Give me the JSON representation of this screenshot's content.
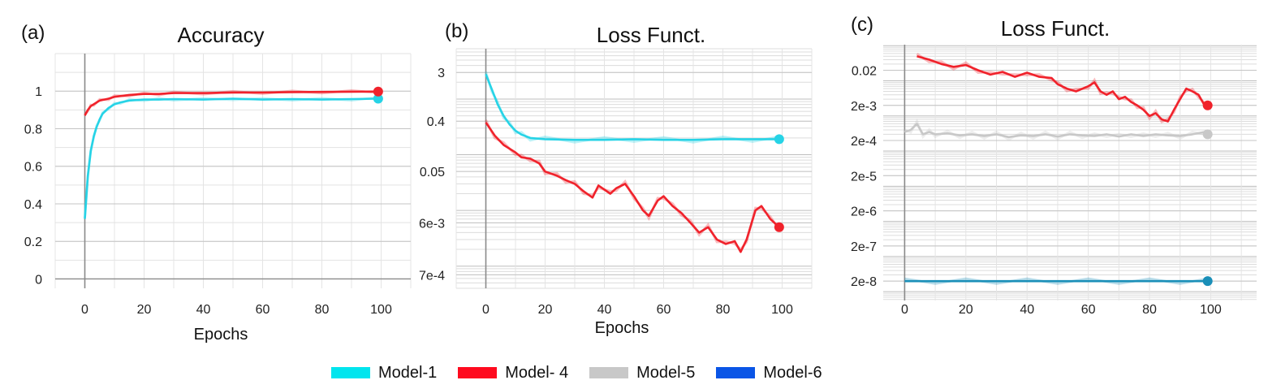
{
  "colors": {
    "Model-1": "#26d3e6",
    "Model- 4": "#f0222b",
    "Model-5": "#c8c8c8",
    "Model-6": "#1565c0",
    "Model-6-line": "#1a8fb8"
  },
  "legend": [
    {
      "label": "Model-1",
      "color": "#00e5ee"
    },
    {
      "label": "Model- 4",
      "color": "#ff0a1e"
    },
    {
      "label": "Model-5",
      "color": "#c8c8c8"
    },
    {
      "label": "Model-6",
      "color": "#0a55e6"
    }
  ],
  "chart_data": [
    {
      "panel": "(a)",
      "type": "line",
      "title": "Accuracy",
      "xlabel": "Epochs",
      "ylabel": "",
      "xlim": [
        -10,
        110
      ],
      "ylim": [
        -0.05,
        1.2
      ],
      "xticks": [
        "0",
        "20",
        "40",
        "60",
        "80",
        "100"
      ],
      "yticks": [
        "0",
        "0.2",
        "0.4",
        "0.6",
        "0.8",
        "1"
      ],
      "grid": true,
      "series": [
        {
          "name": "Model-1",
          "x": [
            0,
            1,
            2,
            3,
            4,
            5,
            6,
            8,
            10,
            12,
            15,
            20,
            25,
            30,
            40,
            50,
            60,
            70,
            80,
            90,
            99
          ],
          "y": [
            0.32,
            0.55,
            0.68,
            0.76,
            0.81,
            0.85,
            0.88,
            0.91,
            0.93,
            0.94,
            0.95,
            0.955,
            0.955,
            0.958,
            0.955,
            0.96,
            0.955,
            0.958,
            0.955,
            0.958,
            0.96
          ]
        },
        {
          "name": "Model- 4",
          "x": [
            0,
            1,
            2,
            3,
            5,
            8,
            10,
            15,
            20,
            25,
            30,
            40,
            50,
            60,
            70,
            80,
            90,
            99
          ],
          "y": [
            0.87,
            0.9,
            0.92,
            0.93,
            0.95,
            0.96,
            0.97,
            0.98,
            0.985,
            0.985,
            0.99,
            0.99,
            0.993,
            0.993,
            0.995,
            0.996,
            0.997,
            0.998
          ]
        }
      ]
    },
    {
      "panel": "(b)",
      "type": "line",
      "title": "Loss Funct.",
      "xlabel": "Epochs",
      "ylabel": "",
      "yscale": "log",
      "xlim": [
        -10,
        110
      ],
      "ylim": [
        0.0004,
        8
      ],
      "xticks": [
        "0",
        "20",
        "40",
        "60",
        "80",
        "100"
      ],
      "yticks": [
        "3",
        "0.4",
        "0.05",
        "6e-3",
        "7e-4"
      ],
      "grid": true,
      "series": [
        {
          "name": "Model-1",
          "x": [
            0,
            2,
            4,
            6,
            8,
            10,
            12,
            15,
            20,
            30,
            40,
            50,
            60,
            70,
            80,
            90,
            99
          ],
          "y": [
            2.8,
            1.5,
            0.8,
            0.5,
            0.35,
            0.27,
            0.23,
            0.2,
            0.19,
            0.185,
            0.185,
            0.19,
            0.185,
            0.185,
            0.19,
            0.19,
            0.19
          ]
        },
        {
          "name": "Model- 4",
          "x": [
            0,
            3,
            6,
            10,
            12,
            15,
            18,
            20,
            24,
            27,
            30,
            33,
            36,
            38,
            42,
            44,
            47,
            50,
            53,
            55,
            58,
            60,
            63,
            66,
            69,
            72,
            75,
            78,
            81,
            84,
            86,
            88,
            91,
            93,
            96,
            99
          ],
          "y": [
            0.38,
            0.22,
            0.15,
            0.11,
            0.09,
            0.085,
            0.07,
            0.05,
            0.042,
            0.035,
            0.03,
            0.022,
            0.017,
            0.028,
            0.02,
            0.025,
            0.03,
            0.018,
            0.01,
            0.008,
            0.015,
            0.018,
            0.012,
            0.009,
            0.006,
            0.004,
            0.005,
            0.003,
            0.0025,
            0.0028,
            0.0018,
            0.003,
            0.01,
            0.012,
            0.007,
            0.005
          ]
        }
      ]
    },
    {
      "panel": "(c)",
      "type": "line",
      "title": "Loss Funct.",
      "xlabel": "",
      "ylabel": "",
      "yscale": "log",
      "xlim": [
        -7,
        115
      ],
      "ylim": [
        1e-08,
        0.06
      ],
      "xticks": [
        "0",
        "20",
        "40",
        "60",
        "80",
        "100"
      ],
      "yticks": [
        "0.02",
        "2e-3",
        "2e-4",
        "2e-5",
        "2e-6",
        "2e-7",
        "2e-8"
      ],
      "grid": true,
      "series": [
        {
          "name": "Model- 4",
          "x": [
            4,
            8,
            12,
            16,
            20,
            24,
            28,
            32,
            36,
            40,
            44,
            48,
            50,
            53,
            56,
            60,
            62,
            64,
            66,
            68,
            70,
            72,
            74,
            76,
            78,
            80,
            82,
            84,
            86,
            88,
            90,
            92,
            94,
            96,
            98,
            99
          ],
          "y": [
            0.05,
            0.04,
            0.03,
            0.025,
            0.028,
            0.02,
            0.015,
            0.018,
            0.013,
            0.017,
            0.013,
            0.012,
            0.008,
            0.006,
            0.005,
            0.007,
            0.009,
            0.005,
            0.004,
            0.005,
            0.003,
            0.0035,
            0.0025,
            0.002,
            0.0015,
            0.001,
            0.0012,
            0.0008,
            0.0007,
            0.0015,
            0.003,
            0.006,
            0.005,
            0.004,
            0.002,
            0.002
          ]
        },
        {
          "name": "Model-5",
          "x": [
            0,
            2,
            4,
            6,
            8,
            10,
            14,
            18,
            22,
            26,
            30,
            34,
            38,
            42,
            46,
            50,
            54,
            58,
            62,
            66,
            70,
            74,
            78,
            82,
            86,
            90,
            94,
            98,
            99
          ],
          "y": [
            0.00035,
            0.0004,
            0.0006,
            0.0003,
            0.00035,
            0.0003,
            0.00032,
            0.00028,
            0.0003,
            0.00027,
            0.0003,
            0.00025,
            0.00028,
            0.00027,
            0.0003,
            0.00026,
            0.0003,
            0.00028,
            0.00027,
            0.0003,
            0.00026,
            0.0003,
            0.00027,
            0.0003,
            0.00028,
            0.00027,
            0.0003,
            0.00035,
            0.0003
          ]
        },
        {
          "name": "Model-6",
          "x": [
            0,
            10,
            20,
            30,
            40,
            50,
            60,
            70,
            80,
            90,
            99
          ],
          "y": [
            2e-08,
            2e-08,
            2e-08,
            2e-08,
            2e-08,
            2e-08,
            2e-08,
            2e-08,
            2e-08,
            2e-08,
            2e-08
          ]
        }
      ]
    }
  ]
}
